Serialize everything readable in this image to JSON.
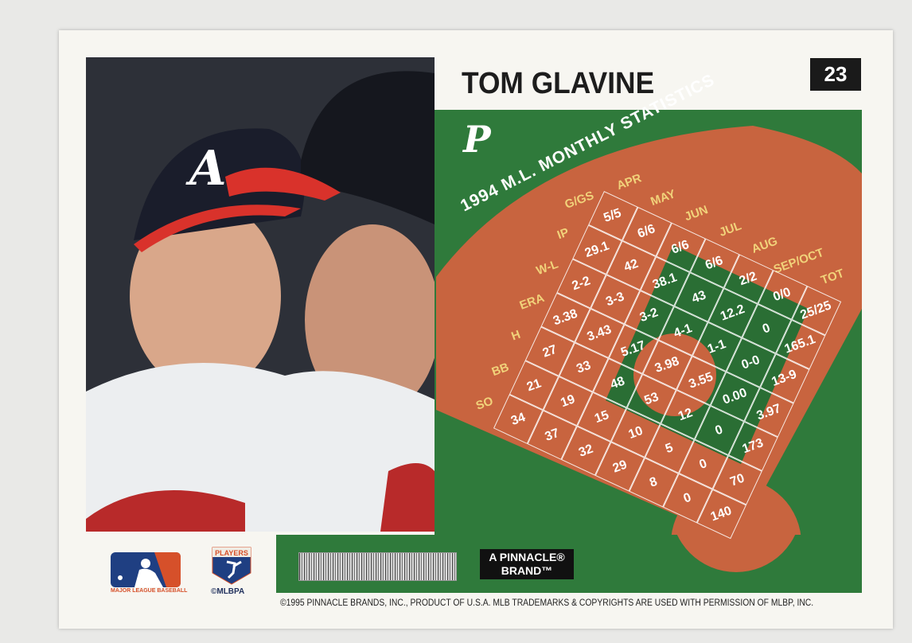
{
  "card": {
    "player_name": "TOM GLAVINE",
    "card_number": "23",
    "position": "P",
    "stats_title": "1994 M.L. MONTHLY STATISTICS",
    "brand_line1": "A PINNACLE®",
    "brand_line2": "BRAND™",
    "copyright": "©1995 PINNACLE BRANDS, INC., PRODUCT OF U.S.A.  MLB TRADEMARKS & COPYRIGHTS ARE USED WITH PERMISSION OF MLBP, INC.",
    "logos": {
      "mlb": "MAJOR LEAGUE BASEBALL",
      "players_badge": "PLAYERS",
      "mlbpa": "©MLBPA"
    }
  },
  "stats": {
    "stat_labels": [
      "G/GS",
      "IP",
      "W-L",
      "ERA",
      "H",
      "BB",
      "SO"
    ],
    "months": [
      "APR",
      "MAY",
      "JUN",
      "JUL",
      "AUG",
      "SEP/OCT",
      "TOT"
    ],
    "rows": [
      [
        "5/5",
        "6/6",
        "6/6",
        "6/6",
        "2/2",
        "0/0",
        "25/25"
      ],
      [
        "29.1",
        "42",
        "38.1",
        "43",
        "12.2",
        "0",
        "165.1"
      ],
      [
        "2-2",
        "3-3",
        "3-2",
        "4-1",
        "1-1",
        "0-0",
        "13-9"
      ],
      [
        "3.38",
        "3.43",
        "5.17",
        "3.98",
        "3.55",
        "0.00",
        "3.97"
      ],
      [
        "27",
        "33",
        "48",
        "53",
        "12",
        "0",
        "173"
      ],
      [
        "21",
        "19",
        "15",
        "10",
        "5",
        "0",
        "70"
      ],
      [
        "34",
        "37",
        "32",
        "29",
        "8",
        "0",
        "140"
      ]
    ]
  },
  "colors": {
    "field_green": "#2f7a3b",
    "dirt": "#c8643f",
    "label_gold": "#f1d27a"
  }
}
